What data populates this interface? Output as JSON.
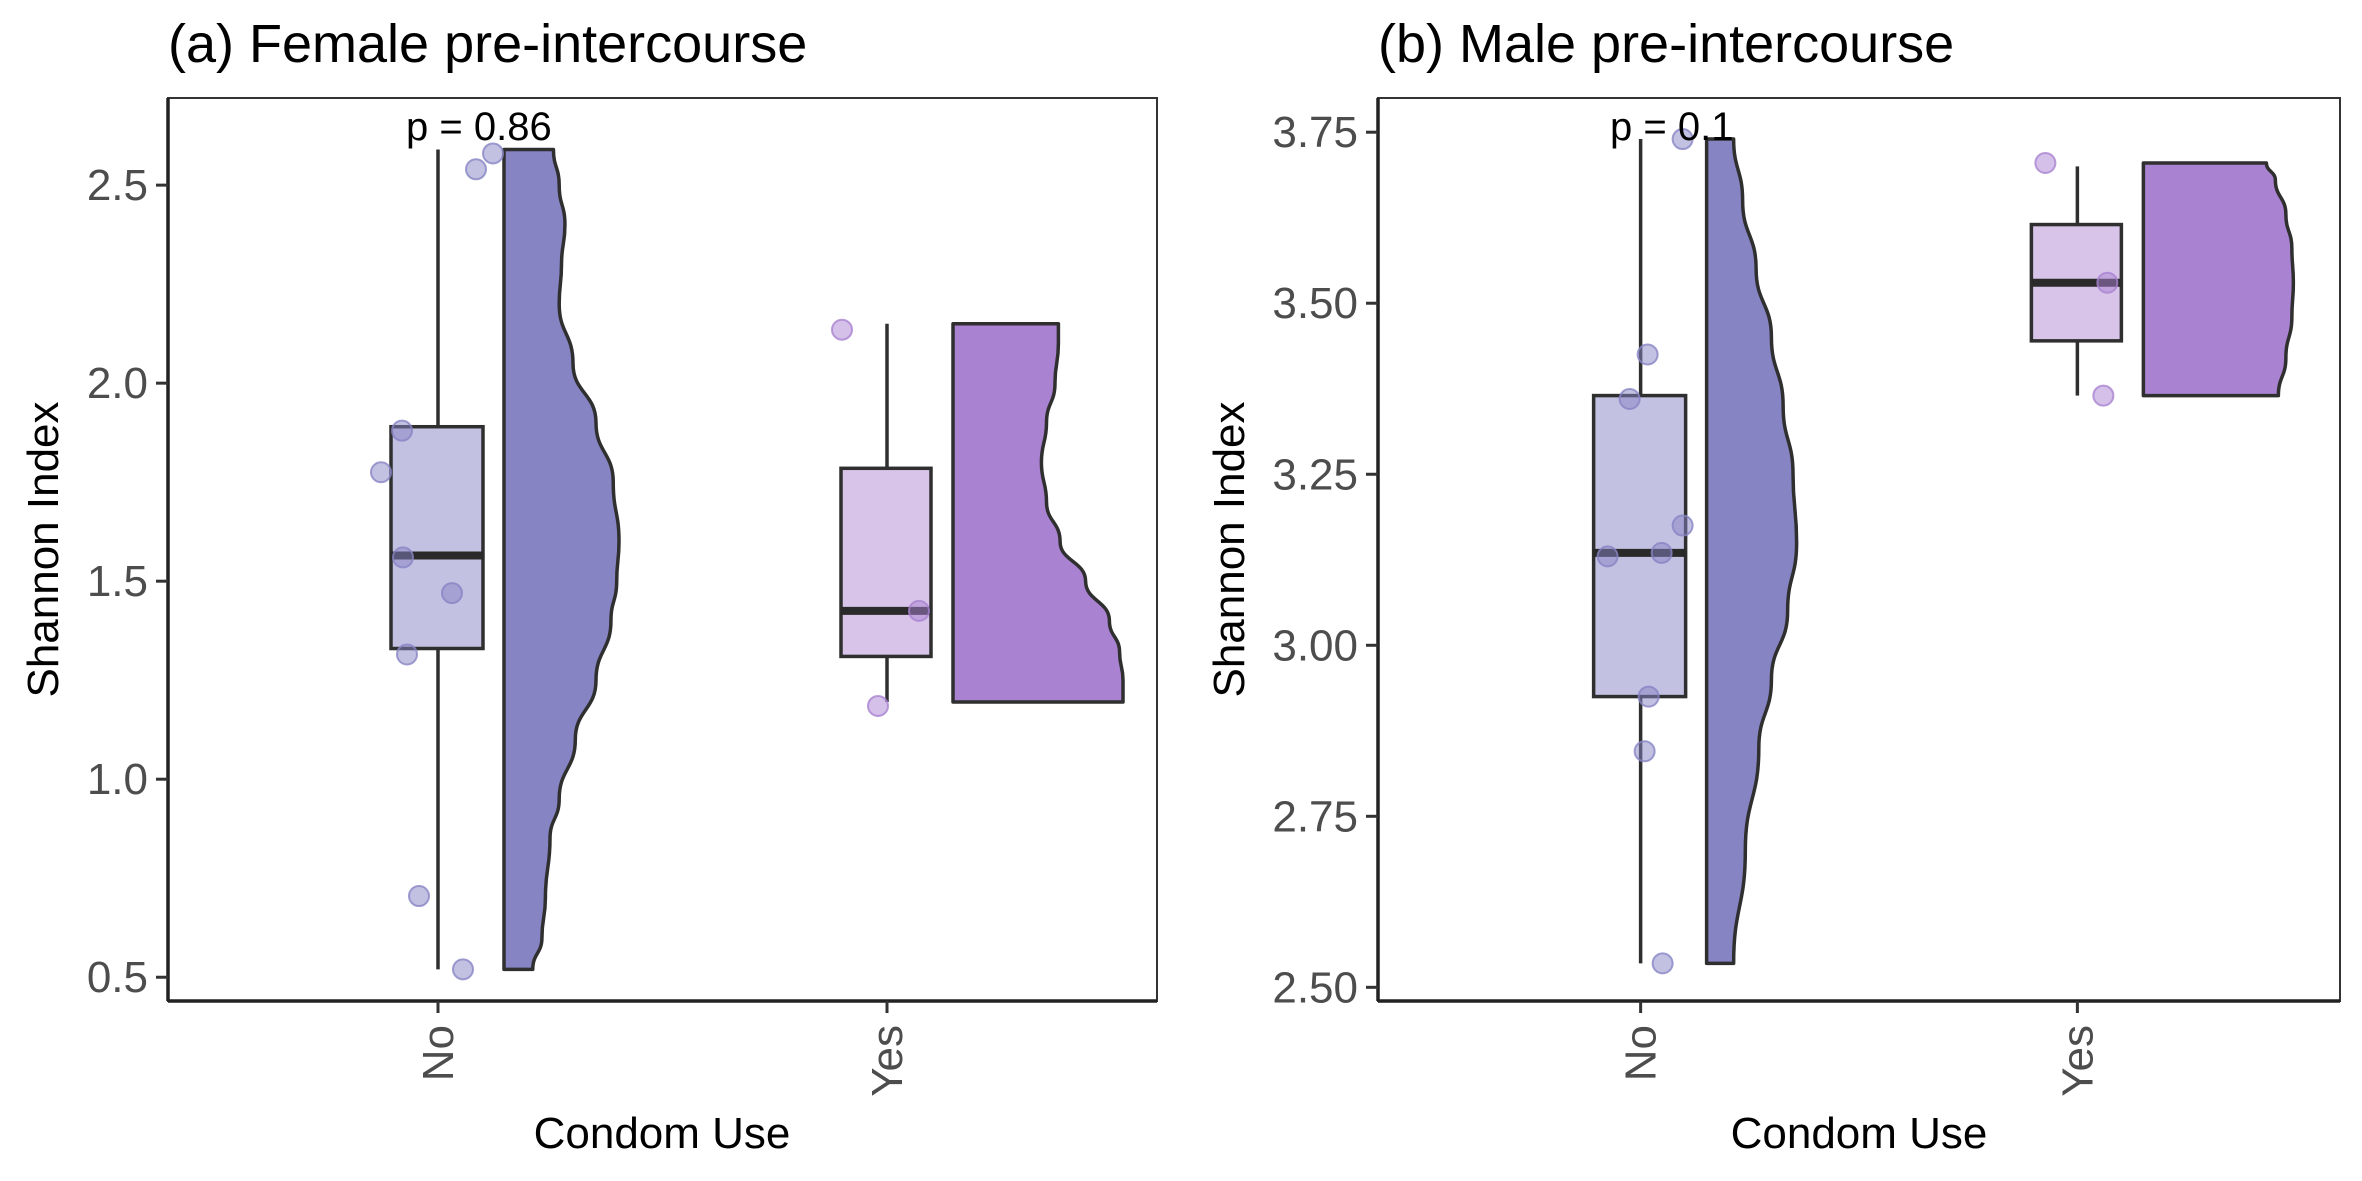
{
  "chart_data": [
    {
      "type": "raincloud",
      "title": "(a) Female pre-intercourse",
      "xlabel": "Condom Use",
      "ylabel": "Shannon Index",
      "ylim": [
        0.44,
        2.72
      ],
      "yticks": [
        0.5,
        1.0,
        1.5,
        2.0,
        2.5
      ],
      "ytick_labels": [
        "0.5",
        "1.0",
        "1.5",
        "2.0",
        "2.5"
      ],
      "categories": [
        "No",
        "Yes"
      ],
      "annotation": "p = 0.86",
      "grid": false,
      "groups": [
        {
          "category": "No",
          "color": "#8784c4",
          "box_color": "#c2c1e2",
          "box": {
            "min": 0.52,
            "q1": 1.33,
            "median": 1.565,
            "q3": 1.89,
            "max": 2.59
          },
          "points": [
            2.54,
            2.58,
            1.88,
            1.775,
            1.56,
            1.47,
            1.315,
            0.705,
            0.52
          ],
          "violin": {
            "min": 0.52,
            "max": 2.59,
            "profile": [
              [
                0.52,
                0.25
              ],
              [
                0.6,
                0.33
              ],
              [
                0.7,
                0.36
              ],
              [
                0.85,
                0.4
              ],
              [
                0.95,
                0.48
              ],
              [
                1.1,
                0.62
              ],
              [
                1.25,
                0.8
              ],
              [
                1.4,
                0.93
              ],
              [
                1.5,
                0.98
              ],
              [
                1.6,
                1.0
              ],
              [
                1.75,
                0.95
              ],
              [
                1.9,
                0.8
              ],
              [
                2.05,
                0.6
              ],
              [
                2.2,
                0.48
              ],
              [
                2.3,
                0.5
              ],
              [
                2.4,
                0.53
              ],
              [
                2.5,
                0.48
              ],
              [
                2.59,
                0.43
              ]
            ]
          }
        },
        {
          "category": "Yes",
          "color": "#a982d1",
          "box_color": "#d8c4e9",
          "box": {
            "min": 1.195,
            "q1": 1.31,
            "median": 1.425,
            "q3": 1.785,
            "max": 2.15
          },
          "points": [
            2.135,
            1.425,
            1.185
          ],
          "violin": {
            "min": 1.195,
            "max": 2.15,
            "profile": [
              [
                1.195,
                1.0
              ],
              [
                1.25,
                1.0
              ],
              [
                1.32,
                0.98
              ],
              [
                1.4,
                0.92
              ],
              [
                1.5,
                0.78
              ],
              [
                1.6,
                0.63
              ],
              [
                1.7,
                0.55
              ],
              [
                1.8,
                0.52
              ],
              [
                1.9,
                0.55
              ],
              [
                2.0,
                0.6
              ],
              [
                2.1,
                0.62
              ],
              [
                2.15,
                0.62
              ]
            ]
          }
        }
      ]
    },
    {
      "type": "raincloud",
      "title": "(b) Male pre-intercourse",
      "xlabel": "Condom Use",
      "ylabel": "Shannon Index",
      "ylim": [
        2.48,
        3.8
      ],
      "yticks": [
        2.5,
        2.75,
        3.0,
        3.25,
        3.5,
        3.75
      ],
      "ytick_labels": [
        "2.50",
        "2.75",
        "3.00",
        "3.25",
        "3.50",
        "3.75"
      ],
      "categories": [
        "No",
        "Yes"
      ],
      "annotation": "p = 0.1",
      "grid": false,
      "groups": [
        {
          "category": "No",
          "color": "#8784c4",
          "box_color": "#c2c1e2",
          "box": {
            "min": 2.535,
            "q1": 2.925,
            "median": 3.135,
            "q3": 3.365,
            "max": 3.74
          },
          "points": [
            3.74,
            3.425,
            3.36,
            3.175,
            3.135,
            3.13,
            2.925,
            2.845,
            2.535
          ],
          "violin": {
            "min": 2.535,
            "max": 3.74,
            "profile": [
              [
                2.535,
                0.3
              ],
              [
                2.7,
                0.43
              ],
              [
                2.85,
                0.58
              ],
              [
                2.95,
                0.72
              ],
              [
                3.05,
                0.9
              ],
              [
                3.15,
                1.0
              ],
              [
                3.25,
                0.96
              ],
              [
                3.35,
                0.85
              ],
              [
                3.45,
                0.72
              ],
              [
                3.55,
                0.55
              ],
              [
                3.65,
                0.4
              ],
              [
                3.74,
                0.3
              ]
            ]
          }
        },
        {
          "category": "Yes",
          "color": "#a982d1",
          "box_color": "#d8c4e9",
          "box": {
            "min": 3.365,
            "q1": 3.445,
            "median": 3.53,
            "q3": 3.615,
            "max": 3.7
          },
          "points": [
            3.705,
            3.53,
            3.365
          ],
          "violin": {
            "min": 3.365,
            "max": 3.705,
            "profile": [
              [
                3.365,
                0.9
              ],
              [
                3.42,
                0.95
              ],
              [
                3.48,
                0.99
              ],
              [
                3.53,
                1.0
              ],
              [
                3.58,
                0.99
              ],
              [
                3.63,
                0.95
              ],
              [
                3.68,
                0.88
              ],
              [
                3.705,
                0.82
              ]
            ]
          }
        }
      ]
    }
  ]
}
